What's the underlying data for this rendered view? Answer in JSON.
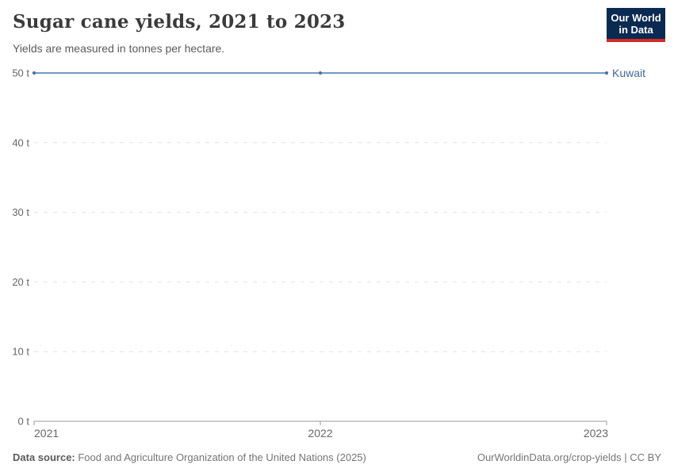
{
  "header": {
    "title": "Sugar cane yields, 2021 to 2023",
    "subtitle": "Yields are measured in tonnes per hectare.",
    "logo": {
      "line1": "Our World",
      "line2": "in Data",
      "bg_color": "#0a2a52",
      "accent_color": "#d22b24"
    }
  },
  "chart_data": {
    "type": "line",
    "title": "Sugar cane yields, 2021 to 2023",
    "subtitle": "Yields are measured in tonnes per hectare.",
    "x": [
      2021,
      2022,
      2023
    ],
    "series": [
      {
        "name": "Kuwait",
        "values": [
          50,
          50,
          50
        ],
        "color": "#6287b4",
        "marker_color": "#4d6f9e",
        "label_color": "#44679a"
      }
    ],
    "xlabel": "",
    "ylabel": "",
    "unit": "t",
    "ylim": [
      0,
      50
    ],
    "xlim": [
      2021,
      2023
    ],
    "yticks": [
      {
        "value": 0,
        "label": "0 t"
      },
      {
        "value": 10,
        "label": "10 t"
      },
      {
        "value": 20,
        "label": "20 t"
      },
      {
        "value": 30,
        "label": "30 t"
      },
      {
        "value": 40,
        "label": "40 t"
      },
      {
        "value": 50,
        "label": "50 t"
      }
    ],
    "xticks": [
      {
        "value": 2021,
        "label": "2021"
      },
      {
        "value": 2022,
        "label": "2022"
      },
      {
        "value": 2023,
        "label": "2023"
      }
    ],
    "grid": "horizontal-dashed",
    "legend_position": "right-of-line-end",
    "colors": {
      "gridline": "#e2e2e2",
      "axis": "#999999",
      "tick_label": "#666666"
    }
  },
  "footer": {
    "source_label": "Data source:",
    "source_text": " Food and Agriculture Organization of the United Nations (2025)",
    "credit": "OurWorldinData.org/crop-yields | CC BY"
  }
}
